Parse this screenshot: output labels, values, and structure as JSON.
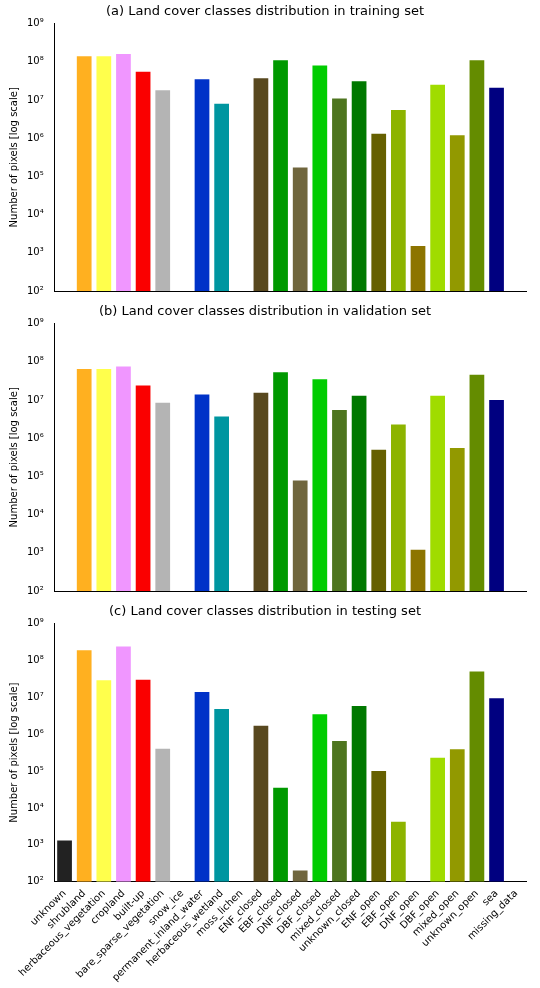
{
  "chart_data": [
    {
      "type": "bar",
      "title": "(a) Land cover classes distribution in training set",
      "y_label": "Number of pixels [log scale]",
      "categories": [
        "unknown",
        "shrubland",
        "herbaceous_vegetation",
        "cropland",
        "built-up",
        "bare_sparse_vegetation",
        "snow_ice",
        "permanent_inland_water",
        "herbaceous_wetland",
        "moss_lichen",
        "ENF_closed",
        "EBF_closed",
        "DNF_closed",
        "DBF_closed",
        "mixed_closed",
        "unknown_closed",
        "ENF_open",
        "EBF_open",
        "DNF_open",
        "DBF_open",
        "mixed_open",
        "unknown_open",
        "sea",
        "missing_data"
      ],
      "values": [
        null,
        140000000,
        140000000,
        160000000,
        55000000,
        18000000,
        null,
        35000000,
        8000000,
        null,
        37000000,
        110000000,
        170000,
        80000000,
        11000000,
        31000000,
        1300000,
        5500000,
        1500,
        25000000,
        1200000,
        110000000,
        21000000,
        null
      ],
      "colors": [
        "#222222",
        "#ffb020",
        "#ffff4c",
        "#f096ff",
        "#fa0000",
        "#b4b4b4",
        "#f0f0f0",
        "#0032c8",
        "#0096a0",
        "#fae6a0",
        "#58481f",
        "#009900",
        "#70663e",
        "#00cc00",
        "#4e751f",
        "#007800",
        "#666000",
        "#8db400",
        "#8d7400",
        "#a0dc00",
        "#929900",
        "#648c00",
        "#000080",
        "#ffffff"
      ],
      "log": "y",
      "grid": false,
      "tick_labels": "y",
      "ylim": [
        100,
        1000000000
      ],
      "yticks": [
        {
          "value": 100,
          "label": "10²"
        },
        {
          "value": 1000,
          "label": "10³"
        },
        {
          "value": 10000,
          "label": "10⁴"
        },
        {
          "value": 100000,
          "label": "10⁵"
        },
        {
          "value": 1000000,
          "label": "10⁶"
        },
        {
          "value": 10000000,
          "label": "10⁷"
        },
        {
          "value": 100000000,
          "label": "10⁸"
        },
        {
          "value": 1000000000,
          "label": "10⁹"
        }
      ]
    },
    {
      "type": "bar",
      "title": "(b) Land cover classes distribution in validation set",
      "y_label": "Number of pixels [log scale]",
      "categories": [
        "unknown",
        "shrubland",
        "herbaceous_vegetation",
        "cropland",
        "built-up",
        "bare_sparse_vegetation",
        "snow_ice",
        "permanent_inland_water",
        "herbaceous_wetland",
        "moss_lichen",
        "ENF_closed",
        "EBF_closed",
        "DNF_closed",
        "DBF_closed",
        "mixed_closed",
        "unknown_closed",
        "ENF_open",
        "EBF_open",
        "DNF_open",
        "DBF_open",
        "mixed_open",
        "unknown_open",
        "sea",
        "missing_data"
      ],
      "values": [
        null,
        65000000,
        65000000,
        75000000,
        24000000,
        8500000,
        null,
        14000000,
        3700000,
        null,
        15500000,
        53000000,
        78000,
        35000000,
        5500000,
        13000000,
        500000,
        2300000,
        1200,
        13000000,
        550000,
        46000000,
        10000000,
        null
      ],
      "colors": [
        "#222222",
        "#ffb020",
        "#ffff4c",
        "#f096ff",
        "#fa0000",
        "#b4b4b4",
        "#f0f0f0",
        "#0032c8",
        "#0096a0",
        "#fae6a0",
        "#58481f",
        "#009900",
        "#70663e",
        "#00cc00",
        "#4e751f",
        "#007800",
        "#666000",
        "#8db400",
        "#8d7400",
        "#a0dc00",
        "#929900",
        "#648c00",
        "#000080",
        "#ffffff"
      ],
      "log": "y",
      "grid": false,
      "tick_labels": "y",
      "ylim": [
        100,
        1000000000
      ],
      "yticks": [
        {
          "value": 100,
          "label": "10²"
        },
        {
          "value": 1000,
          "label": "10³"
        },
        {
          "value": 10000,
          "label": "10⁴"
        },
        {
          "value": 100000,
          "label": "10⁵"
        },
        {
          "value": 1000000,
          "label": "10⁶"
        },
        {
          "value": 10000000,
          "label": "10⁷"
        },
        {
          "value": 100000000,
          "label": "10⁸"
        },
        {
          "value": 1000000000,
          "label": "10⁹"
        }
      ]
    },
    {
      "type": "bar",
      "title": "(c) Land cover classes distribution in testing set",
      "y_label": "Number of pixels [log scale]",
      "categories": [
        "unknown",
        "shrubland",
        "herbaceous_vegetation",
        "cropland",
        "built-up",
        "bare_sparse_vegetation",
        "snow_ice",
        "permanent_inland_water",
        "herbaceous_wetland",
        "moss_lichen",
        "ENF_closed",
        "EBF_closed",
        "DNF_closed",
        "DBF_closed",
        "mixed_closed",
        "unknown_closed",
        "ENF_open",
        "EBF_open",
        "DNF_open",
        "DBF_open",
        "mixed_open",
        "unknown_open",
        "sea",
        "missing_data"
      ],
      "values": [
        1300,
        190000000,
        29000000,
        240000000,
        30000000,
        400000,
        null,
        14000000,
        4800000,
        null,
        1700000,
        35000,
        200,
        3500000,
        650000,
        5800000,
        100000,
        4200,
        null,
        230000,
        390000,
        50000000,
        9500000,
        null
      ],
      "colors": [
        "#222222",
        "#ffb020",
        "#ffff4c",
        "#f096ff",
        "#fa0000",
        "#b4b4b4",
        "#f0f0f0",
        "#0032c8",
        "#0096a0",
        "#fae6a0",
        "#58481f",
        "#009900",
        "#70663e",
        "#00cc00",
        "#4e751f",
        "#007800",
        "#666000",
        "#8db400",
        "#8d7400",
        "#a0dc00",
        "#929900",
        "#648c00",
        "#000080",
        "#ffffff"
      ],
      "log": "y",
      "grid": false,
      "tick_labels": true,
      "ylim": [
        100,
        1000000000
      ],
      "yticks": [
        {
          "value": 100,
          "label": "10²"
        },
        {
          "value": 1000,
          "label": "10³"
        },
        {
          "value": 10000,
          "label": "10⁴"
        },
        {
          "value": 100000,
          "label": "10⁵"
        },
        {
          "value": 1000000,
          "label": "10⁶"
        },
        {
          "value": 10000000,
          "label": "10⁷"
        },
        {
          "value": 100000000,
          "label": "10⁸"
        },
        {
          "value": 1000000000,
          "label": "10⁹"
        }
      ]
    }
  ]
}
